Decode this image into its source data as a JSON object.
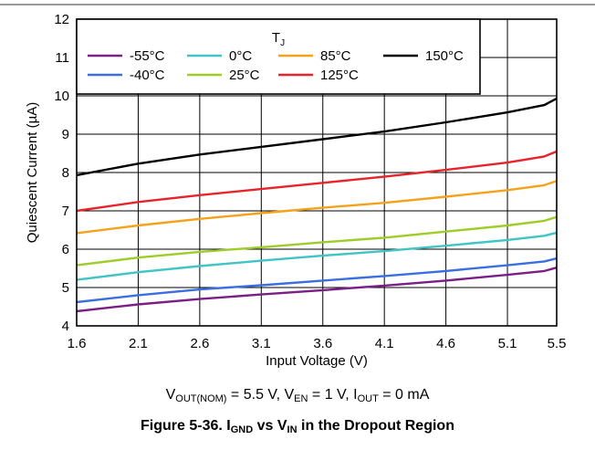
{
  "chart_data": {
    "type": "line",
    "xlabel": "Input Voltage (V)",
    "ylabel": "Quiescent Current (µA)",
    "xlim": [
      1.6,
      5.5
    ],
    "ylim": [
      4,
      12
    ],
    "x_ticks": [
      "1.6",
      "2.1",
      "2.6",
      "3.1",
      "3.6",
      "4.1",
      "4.6",
      "5.1",
      "5.5"
    ],
    "x_tick_values": [
      1.6,
      2.1,
      2.6,
      3.1,
      3.6,
      4.1,
      4.6,
      5.1,
      5.5
    ],
    "y_ticks": [
      "4",
      "5",
      "6",
      "7",
      "8",
      "9",
      "10",
      "11",
      "12"
    ],
    "grid": true,
    "legend_title": "T",
    "legend_title_sub": "J",
    "legend_placement": "top-left",
    "x": [
      1.6,
      2.1,
      2.6,
      3.1,
      3.6,
      4.1,
      4.6,
      5.1,
      5.4,
      5.5
    ],
    "series": [
      {
        "name": "-55°C",
        "color": "#7b1f87",
        "values": [
          4.38,
          4.56,
          4.7,
          4.82,
          4.93,
          5.05,
          5.18,
          5.33,
          5.43,
          5.52
        ]
      },
      {
        "name": "-40°C",
        "color": "#3a6fe0",
        "values": [
          4.62,
          4.8,
          4.95,
          5.06,
          5.18,
          5.3,
          5.43,
          5.58,
          5.68,
          5.76
        ]
      },
      {
        "name": "0°C",
        "color": "#40c4c4",
        "values": [
          5.2,
          5.4,
          5.56,
          5.7,
          5.83,
          5.95,
          6.09,
          6.24,
          6.35,
          6.43
        ]
      },
      {
        "name": "25°C",
        "color": "#9ecd28",
        "values": [
          5.58,
          5.78,
          5.93,
          6.05,
          6.18,
          6.3,
          6.46,
          6.62,
          6.74,
          6.84
        ]
      },
      {
        "name": "85°C",
        "color": "#f5a21b",
        "values": [
          6.42,
          6.62,
          6.79,
          6.94,
          7.08,
          7.21,
          7.37,
          7.54,
          7.67,
          7.78
        ]
      },
      {
        "name": "125°C",
        "color": "#e8242a",
        "values": [
          7.0,
          7.23,
          7.41,
          7.57,
          7.73,
          7.89,
          8.07,
          8.26,
          8.42,
          8.55
        ]
      },
      {
        "name": "150°C",
        "color": "#000000",
        "values": [
          7.93,
          8.23,
          8.47,
          8.67,
          8.87,
          9.07,
          9.31,
          9.57,
          9.76,
          9.93
        ]
      }
    ]
  },
  "conditions": {
    "v_out_main": "V",
    "v_out_sub": "OUT(NOM)",
    "v_out_value": " = 5.5 V, ",
    "v_en_main": "V",
    "v_en_sub": "EN",
    "v_en_value": " = 1 V, ",
    "i_out_main": "I",
    "i_out_sub": "OUT",
    "i_out_value": " = 0 mA"
  },
  "caption": {
    "prefix": "Figure 5-36. ",
    "i_main": "I",
    "i_sub": "GND",
    "middle": " vs ",
    "v_main": "V",
    "v_sub": "IN",
    "suffix": " in the Dropout Region"
  }
}
